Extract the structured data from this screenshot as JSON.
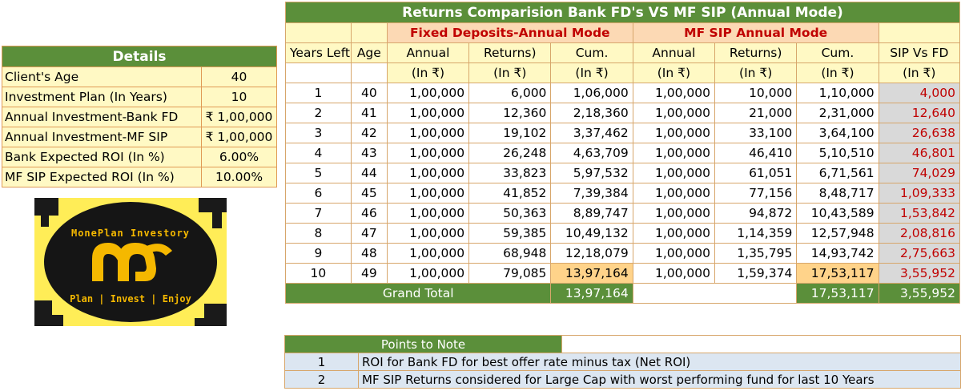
{
  "details": {
    "title": "Details",
    "rows": [
      {
        "label": "Client's Age",
        "value": "40"
      },
      {
        "label": "Investment Plan (In Years)",
        "value": "10"
      },
      {
        "label": "Annual Investment-Bank FD",
        "value": "₹ 1,00,000"
      },
      {
        "label": "Annual Investment-MF SIP",
        "value": "₹ 1,00,000"
      },
      {
        "label": "Bank Expected ROI (In %)",
        "value": "6.00%"
      },
      {
        "label": "MF SIP Expected ROI (In %)",
        "value": "10.00%"
      }
    ]
  },
  "logo": {
    "name": "MonePlan Investory",
    "tagline": "Plan | Invest | Enjoy",
    "colors": {
      "background": "#ffed57",
      "disc": "#151515",
      "gold": "#f5b800"
    }
  },
  "main": {
    "title": "Returns Comparision Bank FD's VS MF SIP (Annual Mode)",
    "group_fd": "Fixed Deposits-Annual Mode",
    "group_mf": "MF SIP Annual Mode",
    "headers": [
      "Years Left",
      "Age",
      "Annual",
      "Returns)",
      "Cum.",
      "Annual",
      "Returns)",
      "Cum.",
      "SIP Vs FD"
    ],
    "units": [
      "",
      "",
      "(In ₹)",
      "(In ₹)",
      "(In ₹)",
      "(In ₹)",
      "(In ₹)",
      "(In ₹)",
      "(In ₹)"
    ],
    "rows": [
      [
        "1",
        "40",
        "1,00,000",
        "6,000",
        "1,06,000",
        "1,00,000",
        "10,000",
        "1,10,000",
        "4,000"
      ],
      [
        "2",
        "41",
        "1,00,000",
        "12,360",
        "2,18,360",
        "1,00,000",
        "21,000",
        "2,31,000",
        "12,640"
      ],
      [
        "3",
        "42",
        "1,00,000",
        "19,102",
        "3,37,462",
        "1,00,000",
        "33,100",
        "3,64,100",
        "26,638"
      ],
      [
        "4",
        "43",
        "1,00,000",
        "26,248",
        "4,63,709",
        "1,00,000",
        "46,410",
        "5,10,510",
        "46,801"
      ],
      [
        "5",
        "44",
        "1,00,000",
        "33,823",
        "5,97,532",
        "1,00,000",
        "61,051",
        "6,71,561",
        "74,029"
      ],
      [
        "6",
        "45",
        "1,00,000",
        "41,852",
        "7,39,384",
        "1,00,000",
        "77,156",
        "8,48,717",
        "1,09,333"
      ],
      [
        "7",
        "46",
        "1,00,000",
        "50,363",
        "8,89,747",
        "1,00,000",
        "94,872",
        "10,43,589",
        "1,53,842"
      ],
      [
        "8",
        "47",
        "1,00,000",
        "59,385",
        "10,49,132",
        "1,00,000",
        "1,14,359",
        "12,57,948",
        "2,08,816"
      ],
      [
        "9",
        "48",
        "1,00,000",
        "68,948",
        "12,18,079",
        "1,00,000",
        "1,35,795",
        "14,93,742",
        "2,75,663"
      ],
      [
        "10",
        "49",
        "1,00,000",
        "79,085",
        "13,97,164",
        "1,00,000",
        "1,59,374",
        "17,53,117",
        "3,55,952"
      ]
    ],
    "grand_total": {
      "label": "Grand Total",
      "fd_cum": "13,97,164",
      "mf_cum": "17,53,117",
      "diff": "3,55,952"
    }
  },
  "notes": {
    "title": "Points to Note",
    "items": [
      {
        "num": "1",
        "text": "ROI for Bank FD for best offer rate minus tax (Net ROI)"
      },
      {
        "num": "2",
        "text": "MF SIP Returns considered for Large Cap with worst performing fund for last 10 Years"
      }
    ]
  }
}
